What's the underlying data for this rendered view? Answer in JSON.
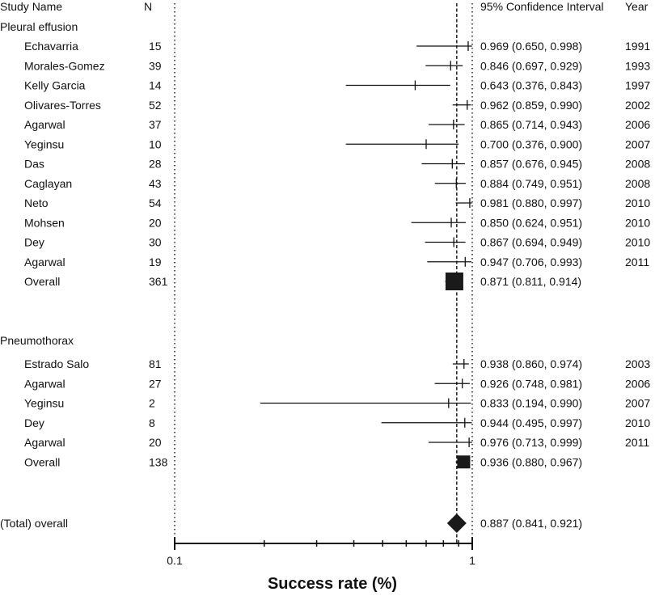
{
  "chart_data": {
    "type": "forest",
    "headers": {
      "study": "Study Name",
      "n": "N",
      "ci": "95% Confidence Interval",
      "year": "Year"
    },
    "xlabel": "Success rate (%)",
    "x_scale": "log",
    "xlim": [
      0.1,
      1
    ],
    "x_tick_labels": [
      "0.1",
      "1"
    ],
    "groups": [
      {
        "name": "Pleural effusion",
        "studies": [
          {
            "study": "Echavarria",
            "n": "15",
            "est": 0.969,
            "lo": 0.65,
            "hi": 0.998,
            "ci_text": "0.969 (0.650, 0.998)",
            "year": "1991"
          },
          {
            "study": "Morales-Gomez",
            "n": "39",
            "est": 0.846,
            "lo": 0.697,
            "hi": 0.929,
            "ci_text": "0.846 (0.697, 0.929)",
            "year": "1993"
          },
          {
            "study": "Kelly Garcia",
            "n": "14",
            "est": 0.643,
            "lo": 0.376,
            "hi": 0.843,
            "ci_text": "0.643 (0.376, 0.843)",
            "year": "1997"
          },
          {
            "study": "Olivares-Torres",
            "n": "52",
            "est": 0.962,
            "lo": 0.859,
            "hi": 0.99,
            "ci_text": "0.962 (0.859, 0.990)",
            "year": "2002"
          },
          {
            "study": "Agarwal",
            "n": "37",
            "est": 0.865,
            "lo": 0.714,
            "hi": 0.943,
            "ci_text": "0.865 (0.714, 0.943)",
            "year": "2006"
          },
          {
            "study": "Yeginsu",
            "n": "10",
            "est": 0.7,
            "lo": 0.376,
            "hi": 0.9,
            "ci_text": "0.700 (0.376, 0.900)",
            "year": "2007"
          },
          {
            "study": "Das",
            "n": "28",
            "est": 0.857,
            "lo": 0.676,
            "hi": 0.945,
            "ci_text": "0.857 (0.676, 0.945)",
            "year": "2008"
          },
          {
            "study": "Caglayan",
            "n": "43",
            "est": 0.884,
            "lo": 0.749,
            "hi": 0.951,
            "ci_text": "0.884 (0.749, 0.951)",
            "year": "2008"
          },
          {
            "study": "Neto",
            "n": "54",
            "est": 0.981,
            "lo": 0.88,
            "hi": 0.997,
            "ci_text": "0.981 (0.880, 0.997)",
            "year": "2010"
          },
          {
            "study": "Mohsen",
            "n": "20",
            "est": 0.85,
            "lo": 0.624,
            "hi": 0.951,
            "ci_text": "0.850 (0.624, 0.951)",
            "year": "2010"
          },
          {
            "study": "Dey",
            "n": "30",
            "est": 0.867,
            "lo": 0.694,
            "hi": 0.949,
            "ci_text": "0.867 (0.694, 0.949)",
            "year": "2010"
          },
          {
            "study": "Agarwal",
            "n": "19",
            "est": 0.947,
            "lo": 0.706,
            "hi": 0.993,
            "ci_text": "0.947 (0.706, 0.993)",
            "year": "2011"
          }
        ],
        "overall": {
          "study": "Overall",
          "n": "361",
          "est": 0.871,
          "lo": 0.811,
          "hi": 0.914,
          "ci_text": "0.871 (0.811, 0.914)"
        }
      },
      {
        "name": "Pneumothorax",
        "studies": [
          {
            "study": "Estrado Salo",
            "n": "81",
            "est": 0.938,
            "lo": 0.86,
            "hi": 0.974,
            "ci_text": "0.938 (0.860, 0.974)",
            "year": "2003"
          },
          {
            "study": "Agarwal",
            "n": "27",
            "est": 0.926,
            "lo": 0.748,
            "hi": 0.981,
            "ci_text": "0.926 (0.748, 0.981)",
            "year": "2006"
          },
          {
            "study": "Yeginsu",
            "n": "2",
            "est": 0.833,
            "lo": 0.194,
            "hi": 0.99,
            "ci_text": "0.833 (0.194, 0.990)",
            "year": "2007"
          },
          {
            "study": "Dey",
            "n": "8",
            "est": 0.944,
            "lo": 0.495,
            "hi": 0.997,
            "ci_text": "0.944 (0.495, 0.997)",
            "year": "2010"
          },
          {
            "study": "Agarwal",
            "n": "20",
            "est": 0.976,
            "lo": 0.713,
            "hi": 0.999,
            "ci_text": "0.976 (0.713, 0.999)",
            "year": "2011"
          }
        ],
        "overall": {
          "study": "Overall",
          "n": "138",
          "est": 0.936,
          "lo": 0.88,
          "hi": 0.967,
          "ci_text": "0.936 (0.880, 0.967)"
        }
      }
    ],
    "total": {
      "study": "(Total) overall",
      "est": 0.887,
      "lo": 0.841,
      "hi": 0.921,
      "ci_text": "0.887 (0.841, 0.921)"
    },
    "colors": {
      "ink": "#111111",
      "marker": "#1a1a1a"
    }
  }
}
